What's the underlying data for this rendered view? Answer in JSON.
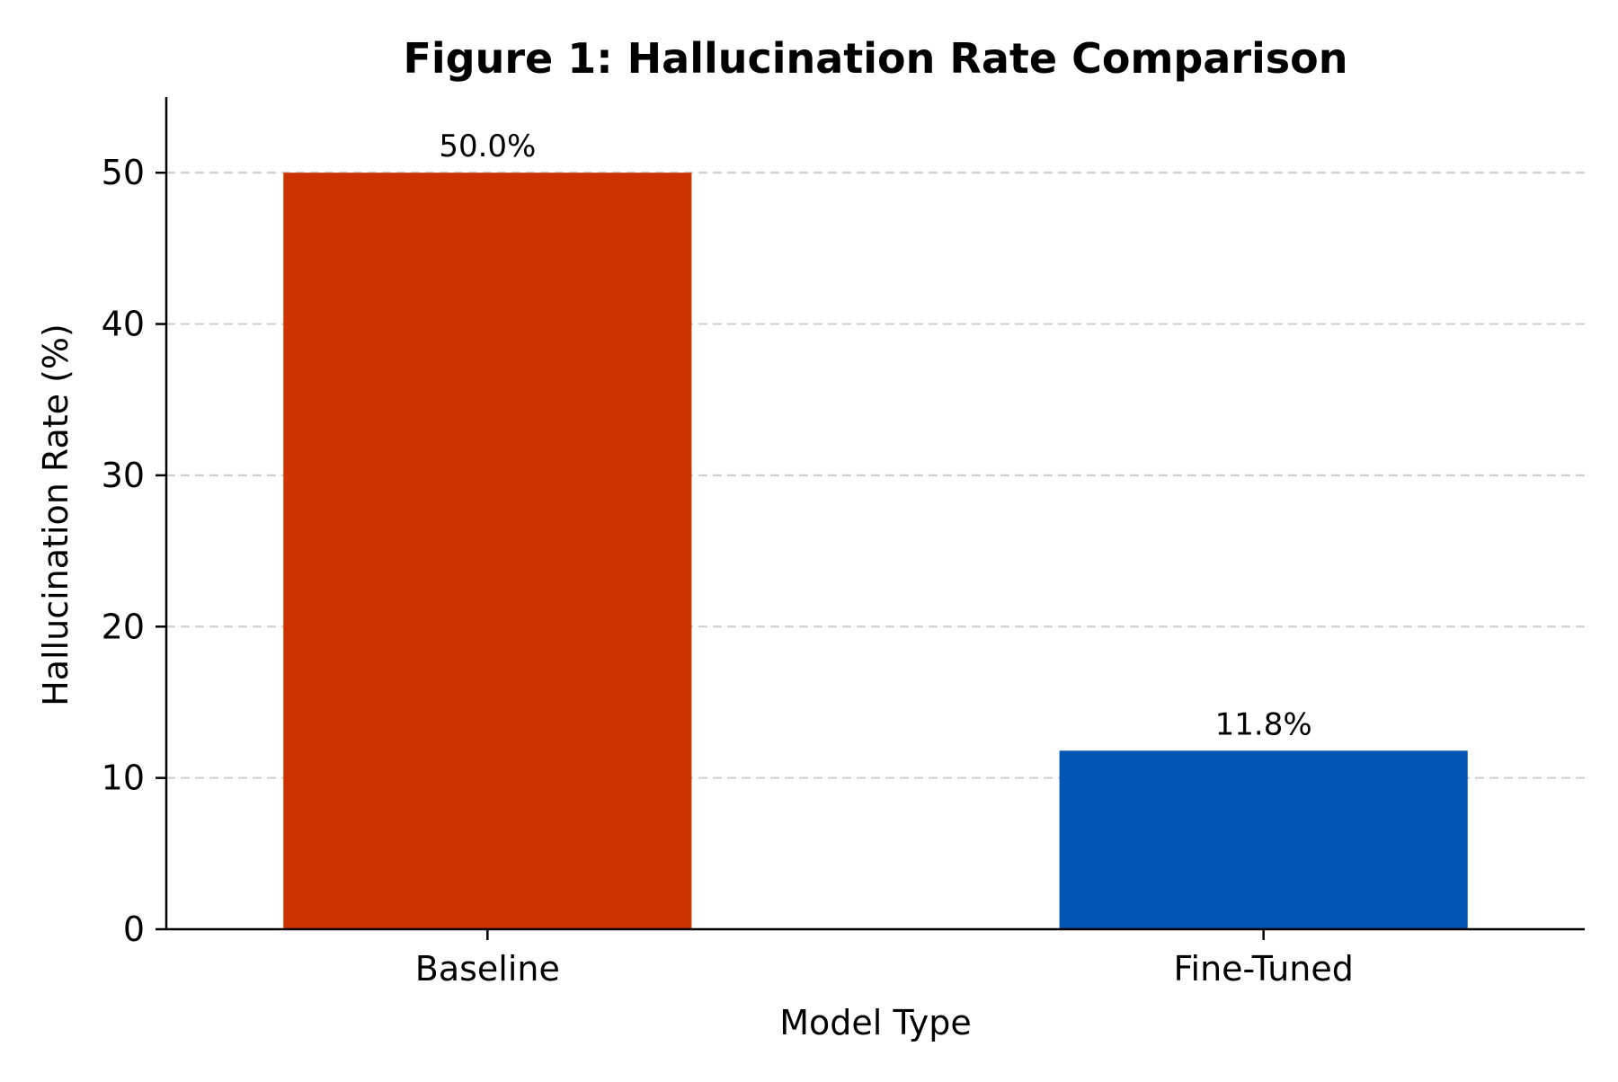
{
  "chart_data": {
    "type": "bar",
    "title": "Figure 1: Hallucination Rate Comparison",
    "xlabel": "Model Type",
    "ylabel": "Hallucination Rate (%)",
    "categories": [
      "Baseline",
      "Fine-Tuned"
    ],
    "values": [
      50.0,
      11.8
    ],
    "value_labels": [
      "50.0%",
      "11.8%"
    ],
    "colors": [
      "#cc3300",
      "#0055b3"
    ],
    "ylim": [
      0,
      55
    ],
    "yticks": [
      0,
      10,
      20,
      30,
      40,
      50
    ],
    "ytick_labels": [
      "0",
      "10",
      "20",
      "30",
      "40",
      "50"
    ],
    "grid": "y-dashed",
    "grid_color": "#cccccc",
    "legend": "none"
  }
}
